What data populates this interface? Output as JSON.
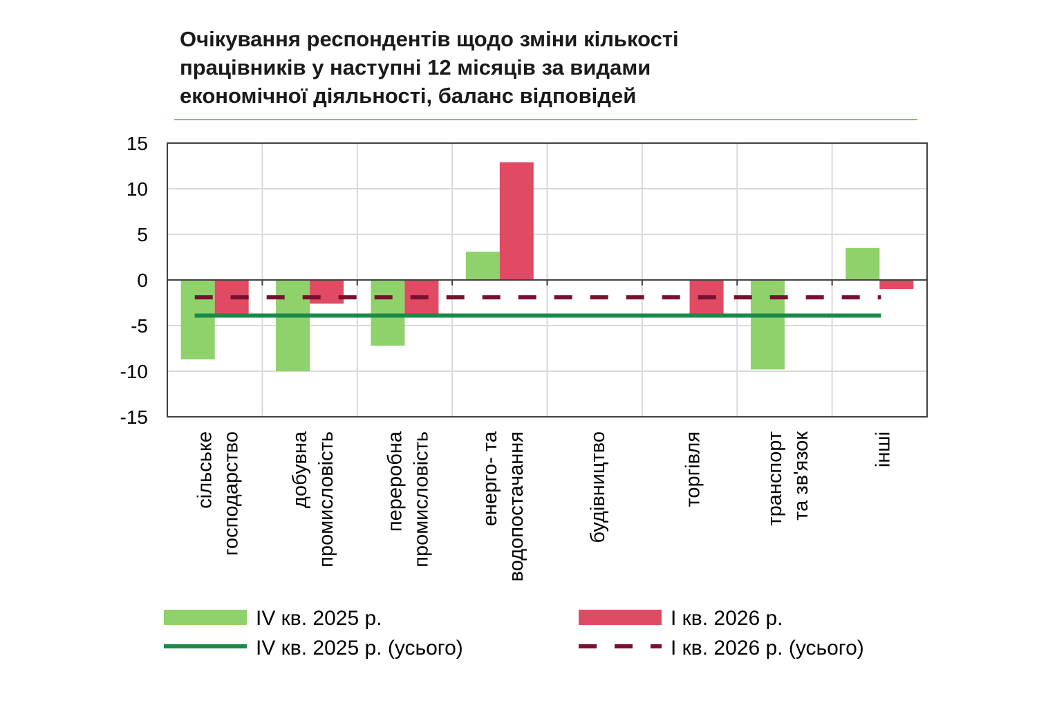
{
  "chart_data": {
    "type": "bar",
    "title_lines": [
      "Очікування респондентів щодо зміни кількості",
      "працівників у наступні 12 місяців за видами",
      "економічної діяльності, баланс відповідей"
    ],
    "categories": [
      [
        "сільське",
        "господарство"
      ],
      [
        "добувна",
        "промисловість"
      ],
      [
        "переробна",
        "промисловість"
      ],
      [
        "енерго- та",
        "водопостачання"
      ],
      [
        "будівництво"
      ],
      [
        "торгівля"
      ],
      [
        "транспорт",
        "та зв'язок"
      ],
      [
        "інші"
      ]
    ],
    "series": [
      {
        "name": "IV кв. 2025 р.",
        "color": "#8fd16a",
        "values": [
          -8.7,
          -10.0,
          -7.2,
          3.1,
          0,
          0,
          -9.8,
          3.5
        ]
      },
      {
        "name": "I кв. 2026 р.",
        "color": "#e04a63",
        "values": [
          -3.8,
          -2.6,
          -3.7,
          12.9,
          0,
          -3.7,
          0,
          -1.0
        ]
      }
    ],
    "reference_lines": [
      {
        "name": "IV кв. 2025 р. (усього)",
        "color": "#1a8a4a",
        "style": "solid",
        "value": -3.9
      },
      {
        "name": "I кв. 2026 р. (усього)",
        "color": "#7a1030",
        "style": "dashed",
        "value": -1.9
      }
    ],
    "ylim": [
      -15,
      15
    ],
    "yticks": [
      15,
      10,
      5,
      0,
      -5,
      -10,
      -15
    ],
    "grid": true,
    "legend_position": "bottom"
  }
}
